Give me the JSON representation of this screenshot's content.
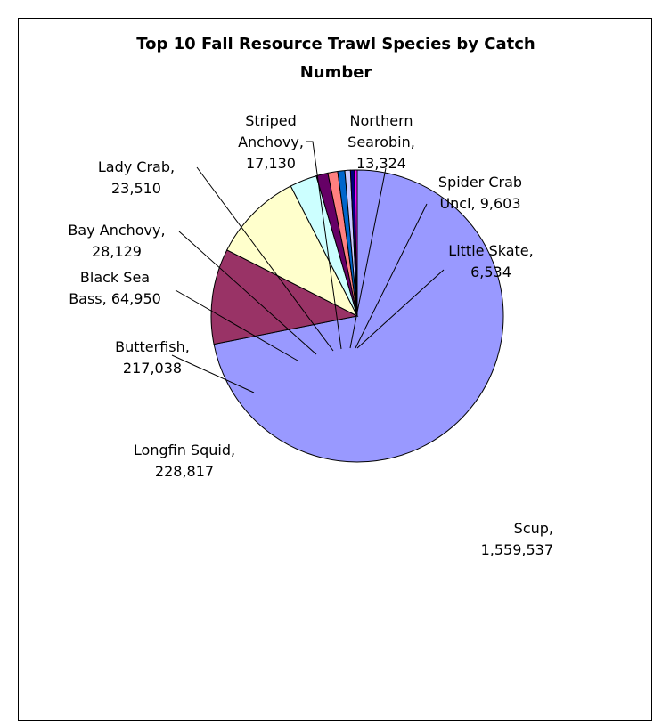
{
  "chart_data": {
    "type": "pie",
    "title": "Top 10 Fall Resource Trawl Species by Catch Number",
    "title_lines": [
      "Top 10 Fall Resource Trawl Species by Catch",
      "Number"
    ],
    "slices": [
      {
        "name": "Scup",
        "value": 1559537,
        "label_lines": [
          "Scup,",
          "1,559,537"
        ],
        "color": "#9999ff"
      },
      {
        "name": "Longfin Squid",
        "value": 228817,
        "label_lines": [
          "Longfin Squid,",
          "228,817"
        ],
        "color": "#993366"
      },
      {
        "name": "Butterfish",
        "value": 217038,
        "label_lines": [
          "Butterfish,",
          "217,038"
        ],
        "color": "#ffffcc"
      },
      {
        "name": "Black Sea Bass",
        "value": 64950,
        "label_lines": [
          "Black Sea",
          "Bass, 64,950"
        ],
        "color": "#ccffff"
      },
      {
        "name": "Bay Anchovy",
        "value": 28129,
        "label_lines": [
          "Bay Anchovy,",
          "28,129"
        ],
        "color": "#660066"
      },
      {
        "name": "Lady Crab",
        "value": 23510,
        "label_lines": [
          "Lady Crab,",
          "23,510"
        ],
        "color": "#ff8080"
      },
      {
        "name": "Striped Anchovy",
        "value": 17130,
        "label_lines": [
          "Striped",
          "Anchovy,",
          "17,130"
        ],
        "color": "#0066cc"
      },
      {
        "name": "Northern Searobin",
        "value": 13324,
        "label_lines": [
          "Northern",
          "Searobin,",
          "13,324"
        ],
        "color": "#ccccff"
      },
      {
        "name": "Spider Crab Uncl",
        "value": 9603,
        "label_lines": [
          "Spider Crab",
          "Uncl, 9,603"
        ],
        "color": "#000080"
      },
      {
        "name": "Little Skate",
        "value": 6534,
        "label_lines": [
          "Little Skate,",
          "6,534"
        ],
        "color": "#ff00ff"
      }
    ]
  }
}
